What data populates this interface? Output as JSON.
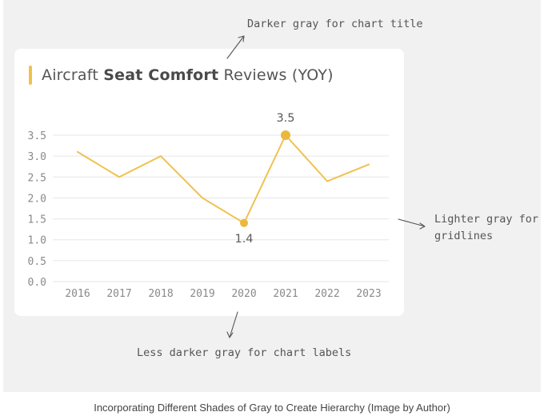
{
  "annotations": {
    "title_note": "Darker gray for chart title",
    "gridline_note_line1": "Lighter gray for",
    "gridline_note_line2": "gridlines",
    "labels_note": "Less darker gray for chart labels"
  },
  "caption": "Incorporating Different Shades of Gray to Create Hierarchy (Image by Author)",
  "colors": {
    "line": "#efc24f",
    "marker": "#eab93c",
    "accent": "#f0c24a",
    "gridline": "#e6e6e6",
    "axis_label": "#8a8a8a",
    "data_label": "#5a5a5a"
  },
  "chart_data": {
    "type": "line",
    "title_parts": {
      "prefix": "Aircraft ",
      "bold": "Seat Comfort",
      "suffix": " Reviews (YOY)"
    },
    "categories": [
      "2016",
      "2017",
      "2018",
      "2019",
      "2020",
      "2021",
      "2022",
      "2023"
    ],
    "values": [
      3.1,
      2.5,
      3.0,
      2.0,
      1.4,
      3.5,
      2.4,
      2.8
    ],
    "y_ticks": [
      "0.0",
      "0.5",
      "1.0",
      "1.5",
      "2.0",
      "2.5",
      "3.0",
      "3.5"
    ],
    "ylim": [
      0,
      3.5
    ],
    "grid": true,
    "highlighted_points": [
      {
        "category": "2020",
        "value": 1.4,
        "label": "1.4"
      },
      {
        "category": "2021",
        "value": 3.5,
        "label": "3.5"
      }
    ],
    "xlabel": "",
    "ylabel": ""
  }
}
